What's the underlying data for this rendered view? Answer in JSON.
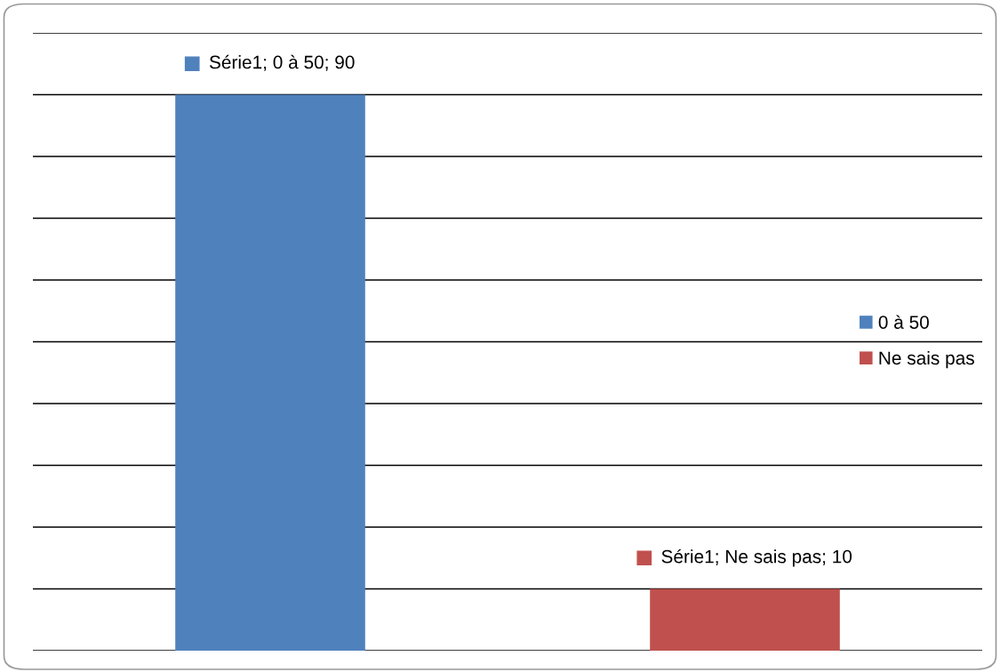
{
  "chart_data": {
    "type": "bar",
    "categories": [
      null,
      null
    ],
    "series": [
      {
        "name": "0 à 50",
        "color": "#4f81bd",
        "values": [
          90,
          null
        ],
        "value_labels": [
          "Série1; 0 à 50; 90",
          null
        ]
      },
      {
        "name": "Ne sais pas",
        "color": "#c0504d",
        "values": [
          null,
          10
        ],
        "value_labels": [
          null,
          "Série1; Ne sais pas; 10"
        ]
      }
    ],
    "ylim": [
      0,
      100
    ],
    "yticks": [
      {
        "value": 0,
        "label": null
      },
      {
        "value": 10,
        "label": null
      },
      {
        "value": 20,
        "label": null
      },
      {
        "value": 30,
        "label": null
      },
      {
        "value": 40,
        "label": null
      },
      {
        "value": 50,
        "label": null
      },
      {
        "value": 60,
        "label": null
      },
      {
        "value": 70,
        "label": null
      },
      {
        "value": 80,
        "label": null
      },
      {
        "value": 90,
        "label": null
      },
      {
        "value": 100,
        "label": null
      }
    ],
    "grid": "y",
    "legend": "right",
    "stacked": true
  }
}
